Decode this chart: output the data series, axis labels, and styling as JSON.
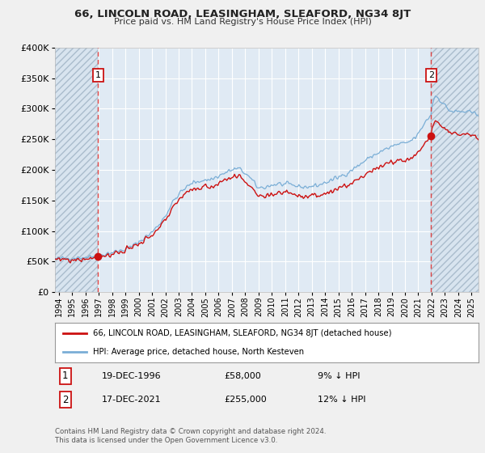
{
  "title": "66, LINCOLN ROAD, LEASINGHAM, SLEAFORD, NG34 8JT",
  "subtitle": "Price paid vs. HM Land Registry's House Price Index (HPI)",
  "legend_line1": "66, LINCOLN ROAD, LEASINGHAM, SLEAFORD, NG34 8JT (detached house)",
  "legend_line2": "HPI: Average price, detached house, North Kesteven",
  "annotation1_date": "19-DEC-1996",
  "annotation1_price": "£58,000",
  "annotation1_hpi": "9% ↓ HPI",
  "annotation2_date": "17-DEC-2021",
  "annotation2_price": "£255,000",
  "annotation2_hpi": "12% ↓ HPI",
  "footer1": "Contains HM Land Registry data © Crown copyright and database right 2024.",
  "footer2": "This data is licensed under the Open Government Licence v3.0.",
  "sale1_date_num": 1996.96,
  "sale1_price": 58000,
  "sale2_date_num": 2021.96,
  "sale2_price": 255000,
  "vline1_date_num": 1996.96,
  "vline2_date_num": 2021.96,
  "hpi_color": "#7aaed6",
  "price_color": "#cc1111",
  "vline_color": "#dd4444",
  "bg_color": "#f0f0f0",
  "plot_bg": "#e0eaf4",
  "hatch_bg": "#d8e4ef",
  "grid_color": "#ffffff",
  "ylim": [
    0,
    400000
  ],
  "xlim_start": 1993.7,
  "xlim_end": 2025.5,
  "yticks": [
    0,
    50000,
    100000,
    150000,
    200000,
    250000,
    300000,
    350000,
    400000
  ],
  "ytick_labels": [
    "£0",
    "£50K",
    "£100K",
    "£150K",
    "£200K",
    "£250K",
    "£300K",
    "£350K",
    "£400K"
  ],
  "xtick_start": 1994,
  "xtick_end": 2025
}
